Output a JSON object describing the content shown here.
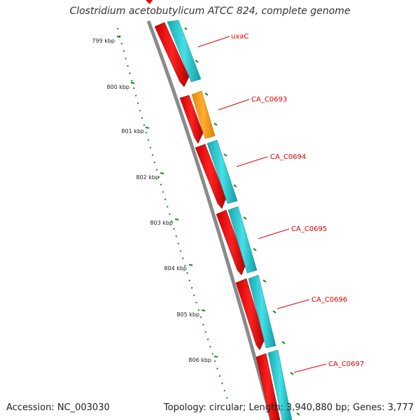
{
  "title": "Clostridium acetobutylicum ATCC 824, complete genome",
  "footer": {
    "accession": "Accession: NC_003030",
    "summary": "Topology: circular; Length: 3,940,880 bp; Genes: 3,777"
  },
  "ruler": {
    "ticks": [
      "799 kbp",
      "800 kbp",
      "801 kbp",
      "802 kbp",
      "803 kbp",
      "804 kbp",
      "805 kbp",
      "806 kbp"
    ]
  },
  "genes": [
    {
      "label": "uxaC",
      "feature_color": "#ee0000",
      "cds_color": "#22c4cc"
    },
    {
      "label": "CA_C0693",
      "feature_color": "#ee0000",
      "cds_color": "#ff9900"
    },
    {
      "label": "CA_C0694",
      "feature_color": "#ee0000",
      "cds_color": "#22c4cc"
    },
    {
      "label": "CA_C0695",
      "feature_color": "#ee0000",
      "cds_color": "#22c4cc"
    },
    {
      "label": "CA_C0696",
      "feature_color": "#ee0000",
      "cds_color": "#22c4cc"
    },
    {
      "label": "CA_C0697",
      "feature_color": "#ee0000",
      "cds_color": "#22c4cc"
    }
  ],
  "colors": {
    "label_text": "#dd0000",
    "leader_line": "#dd0000",
    "ruler": "#118811",
    "backbone": "#888888"
  }
}
